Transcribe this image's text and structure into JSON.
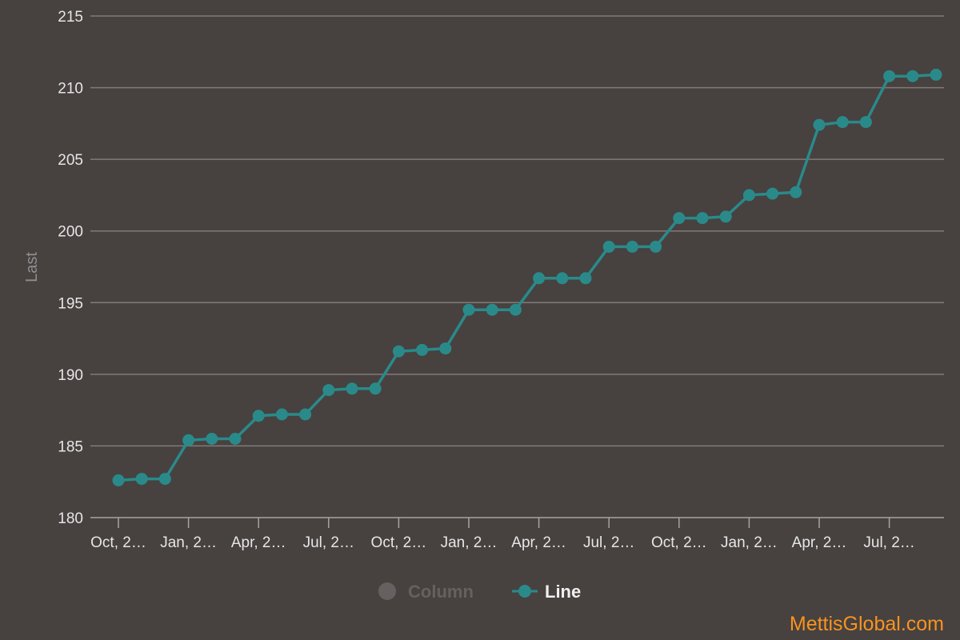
{
  "chart_data": {
    "type": "line",
    "ylabel": "Last",
    "ylim": [
      180,
      215
    ],
    "yticks": [
      180,
      185,
      190,
      195,
      200,
      205,
      210,
      215
    ],
    "grid": true,
    "x_tick_labels": [
      "Oct, 2…",
      "Jan, 2…",
      "Apr, 2…",
      "Jul, 2…",
      "Oct, 2…",
      "Jan, 2…",
      "Apr, 2…",
      "Jul, 2…",
      "Oct, 2…",
      "Jan, 2…",
      "Apr, 2…",
      "Jul, 2…"
    ],
    "series": [
      {
        "name": "Line",
        "color": "#2a8a8a",
        "values": [
          182.6,
          182.7,
          182.7,
          185.4,
          185.5,
          185.5,
          187.1,
          187.2,
          187.2,
          188.9,
          189.0,
          189.0,
          191.6,
          191.7,
          191.8,
          194.5,
          194.5,
          194.5,
          196.7,
          196.7,
          196.7,
          198.9,
          198.9,
          198.9,
          200.9,
          200.9,
          201.0,
          202.5,
          202.6,
          202.7,
          207.4,
          207.6,
          207.6,
          210.8,
          210.8,
          210.9
        ]
      }
    ],
    "legend": {
      "position": "bottom-center",
      "items": [
        {
          "label": "Column",
          "visible": false,
          "color": "#656160",
          "icon": "circle-icon"
        },
        {
          "label": "Line",
          "visible": true,
          "color": "#2a8a8a",
          "icon": "line-marker-icon"
        }
      ]
    }
  },
  "watermark": "MettisGlobal.com"
}
